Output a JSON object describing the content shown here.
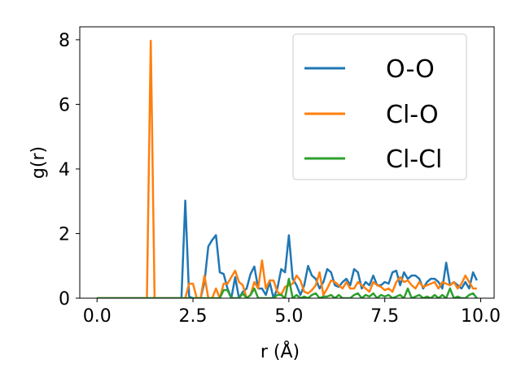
{
  "chart_data": {
    "type": "line",
    "xlabel": "r (Å)",
    "ylabel": "g(r)",
    "xlim": [
      -0.45,
      10.35
    ],
    "ylim": [
      0,
      8.4
    ],
    "xticks": [
      0.0,
      2.5,
      5.0,
      7.5,
      10.0
    ],
    "xtick_labels": [
      "0.0",
      "2.5",
      "5.0",
      "7.5",
      "10.0"
    ],
    "yticks": [
      0,
      2,
      4,
      6,
      8
    ],
    "ytick_labels": [
      "0",
      "2",
      "4",
      "6",
      "8"
    ],
    "grid": false,
    "legend_position": "top-right",
    "series": [
      {
        "name": "O-O",
        "color": "#1f77b4",
        "x": [
          0.0,
          2.2,
          2.3,
          2.4,
          2.5,
          2.6,
          2.7,
          2.8,
          2.9,
          3.0,
          3.1,
          3.2,
          3.3,
          3.4,
          3.5,
          3.6,
          3.7,
          3.8,
          3.9,
          4.0,
          4.1,
          4.2,
          4.3,
          4.4,
          4.5,
          4.6,
          4.7,
          4.8,
          4.9,
          5.0,
          5.1,
          5.2,
          5.3,
          5.4,
          5.5,
          5.6,
          5.7,
          5.8,
          5.9,
          6.0,
          6.1,
          6.2,
          6.3,
          6.4,
          6.5,
          6.6,
          6.7,
          6.8,
          6.9,
          7.0,
          7.1,
          7.2,
          7.3,
          7.4,
          7.5,
          7.6,
          7.7,
          7.8,
          7.9,
          8.0,
          8.1,
          8.2,
          8.3,
          8.4,
          8.5,
          8.6,
          8.7,
          8.8,
          8.9,
          9.0,
          9.1,
          9.2,
          9.3,
          9.4,
          9.5,
          9.6,
          9.7,
          9.8,
          9.9
        ],
        "y": [
          0.0,
          0.0,
          3.02,
          0.05,
          0.0,
          0.0,
          0.0,
          0.5,
          1.6,
          1.8,
          1.95,
          0.8,
          0.75,
          0.3,
          0.0,
          0.65,
          0.0,
          0.2,
          0.3,
          0.75,
          0.98,
          0.3,
          0.3,
          0.1,
          0.5,
          0.0,
          0.3,
          0.9,
          0.8,
          1.95,
          0.6,
          0.4,
          0.1,
          0.4,
          1.0,
          0.7,
          0.6,
          0.3,
          0.5,
          0.9,
          0.8,
          0.4,
          0.35,
          0.5,
          0.6,
          0.4,
          0.9,
          0.8,
          0.3,
          0.5,
          0.4,
          0.7,
          0.4,
          0.4,
          0.5,
          0.45,
          0.8,
          0.85,
          0.4,
          0.8,
          0.6,
          0.7,
          0.7,
          0.6,
          0.3,
          0.5,
          0.6,
          0.6,
          0.5,
          0.3,
          1.1,
          0.4,
          0.5,
          0.4,
          0.3,
          0.5,
          0.3,
          0.8,
          0.55
        ]
      },
      {
        "name": "Cl-O",
        "color": "#ff7f0e",
        "x": [
          0.0,
          1.3,
          1.4,
          1.5,
          1.6,
          2.3,
          2.4,
          2.5,
          2.6,
          2.7,
          2.8,
          2.9,
          3.0,
          3.1,
          3.2,
          3.3,
          3.4,
          3.5,
          3.6,
          3.7,
          3.8,
          3.9,
          4.0,
          4.1,
          4.2,
          4.3,
          4.4,
          4.5,
          4.6,
          4.7,
          4.8,
          4.9,
          5.0,
          5.1,
          5.2,
          5.3,
          5.4,
          5.5,
          5.6,
          5.7,
          5.8,
          5.9,
          6.0,
          6.1,
          6.2,
          6.3,
          6.4,
          6.5,
          6.6,
          6.7,
          6.8,
          6.9,
          7.0,
          7.1,
          7.2,
          7.3,
          7.4,
          7.5,
          7.6,
          7.7,
          7.8,
          7.9,
          8.0,
          8.1,
          8.2,
          8.3,
          8.4,
          8.5,
          8.6,
          8.7,
          8.8,
          8.9,
          9.0,
          9.1,
          9.2,
          9.3,
          9.4,
          9.5,
          9.6,
          9.7,
          9.8,
          9.9
        ],
        "y": [
          0.0,
          0.0,
          7.97,
          0.0,
          0.0,
          0.0,
          0.45,
          0.45,
          0.0,
          0.0,
          0.7,
          0.0,
          0.0,
          0.3,
          0.0,
          0.45,
          0.45,
          0.65,
          0.85,
          0.5,
          0.4,
          0.0,
          0.1,
          0.5,
          0.3,
          1.17,
          0.3,
          0.55,
          0.55,
          0.2,
          0.1,
          0.35,
          0.4,
          0.45,
          0.7,
          0.55,
          0.2,
          0.15,
          0.25,
          0.4,
          0.8,
          0.1,
          0.3,
          0.55,
          0.5,
          0.4,
          0.3,
          0.5,
          0.3,
          0.3,
          0.5,
          0.4,
          0.3,
          0.2,
          0.5,
          0.4,
          0.35,
          0.25,
          0.3,
          0.2,
          0.5,
          0.65,
          0.5,
          0.55,
          0.4,
          0.3,
          0.5,
          0.35,
          0.4,
          0.45,
          0.5,
          0.3,
          0.5,
          0.45,
          0.4,
          0.5,
          0.3,
          0.45,
          0.7,
          0.5,
          0.3,
          0.3
        ]
      },
      {
        "name": "Cl-Cl",
        "color": "#2ca02c",
        "x": [
          0.0,
          3.2,
          3.3,
          3.4,
          3.5,
          3.6,
          3.7,
          3.8,
          3.9,
          4.0,
          4.1,
          4.2,
          4.3,
          4.4,
          4.5,
          4.6,
          4.7,
          4.8,
          4.9,
          5.0,
          5.1,
          5.2,
          5.3,
          5.4,
          5.5,
          5.6,
          5.7,
          5.8,
          5.9,
          6.0,
          6.1,
          6.2,
          6.3,
          6.4,
          6.5,
          6.6,
          6.7,
          6.8,
          6.9,
          7.0,
          7.1,
          7.2,
          7.3,
          7.4,
          7.5,
          7.6,
          7.7,
          7.8,
          7.9,
          8.0,
          8.1,
          8.2,
          8.3,
          8.4,
          8.5,
          8.6,
          8.7,
          8.8,
          8.9,
          9.0,
          9.1,
          9.2,
          9.3,
          9.4,
          9.5,
          9.6,
          9.7,
          9.8,
          9.9
        ],
        "y": [
          0.0,
          0.0,
          0.25,
          0.25,
          0.0,
          0.0,
          0.0,
          0.15,
          0.0,
          0.1,
          0.3,
          0.0,
          0.0,
          0.0,
          0.0,
          0.0,
          0.1,
          0.1,
          0.0,
          0.6,
          0.0,
          0.1,
          0.0,
          0.05,
          0.0,
          0.1,
          0.15,
          0.0,
          0.05,
          0.05,
          0.1,
          0.0,
          0.1,
          0.0,
          0.0,
          0.0,
          0.1,
          0.15,
          0.0,
          0.1,
          0.05,
          0.15,
          0.0,
          0.1,
          0.05,
          0.1,
          0.0,
          0.05,
          0.1,
          0.0,
          0.3,
          0.0,
          0.05,
          0.1,
          0.0,
          0.05,
          0.0,
          0.1,
          0.0,
          0.1,
          0.0,
          0.3,
          0.0,
          0.05,
          0.0,
          0.0,
          0.1,
          0.15,
          0.0
        ]
      }
    ]
  }
}
